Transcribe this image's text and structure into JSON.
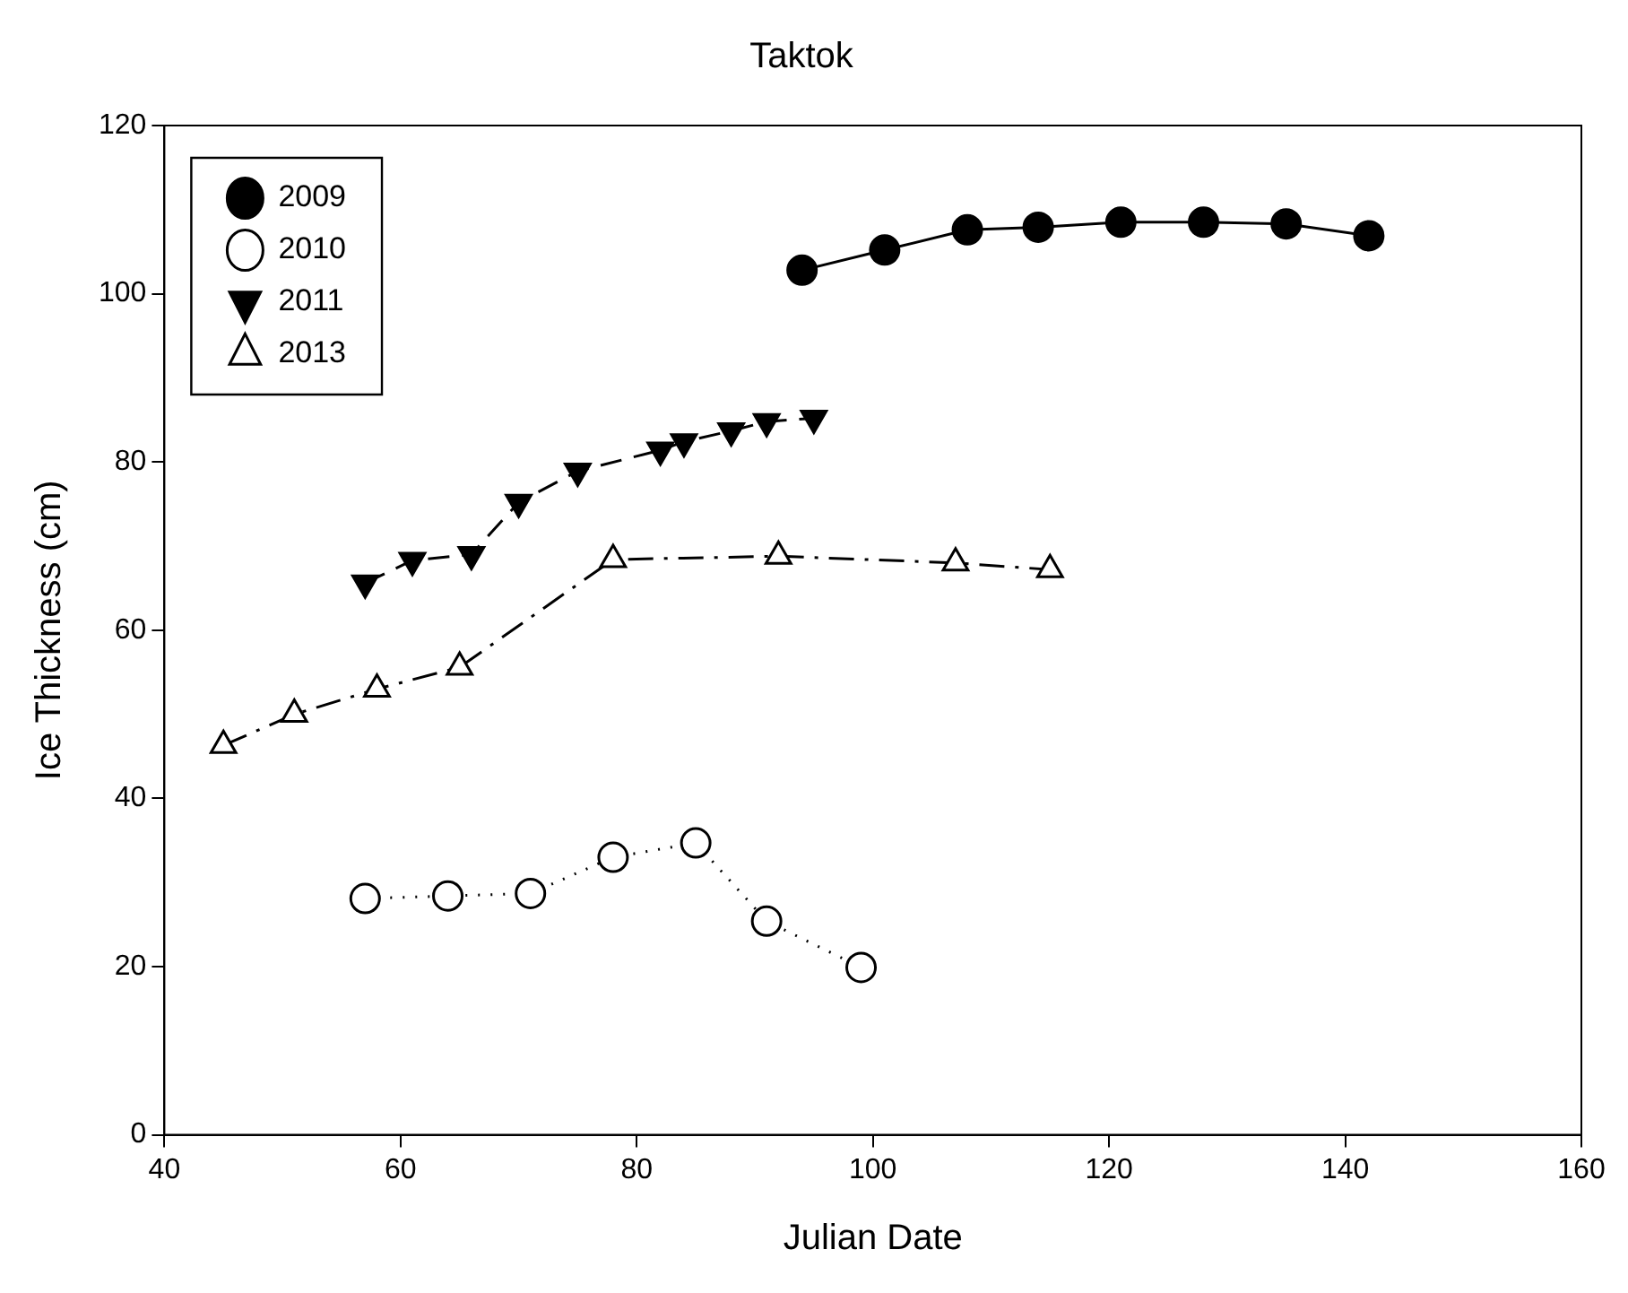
{
  "chart_data": {
    "type": "line",
    "title": "Taktok",
    "xlabel": "Julian Date",
    "ylabel": "Ice Thickness (cm)",
    "xlim": [
      40,
      160
    ],
    "xticks": [
      40,
      60,
      80,
      100,
      120,
      140,
      160
    ],
    "ylim": [
      0,
      120
    ],
    "yticks": [
      0,
      20,
      40,
      60,
      80,
      100,
      120
    ],
    "grid": false,
    "legend": "top left",
    "series": [
      {
        "name": "2009",
        "color": "#000000",
        "marker": "circle",
        "line_style": "solid",
        "x": [
          94,
          101,
          108,
          114,
          121,
          128,
          135,
          142
        ],
        "values": [
          102.8,
          105.2,
          107.6,
          107.9,
          108.5,
          108.5,
          108.3,
          106.9
        ],
        "colors": [
          "#000000",
          "#000000",
          "#000000",
          "#000000",
          "#000000",
          "#000000",
          "#000000",
          "#000000"
        ]
      },
      {
        "name": "2010",
        "color": "#000000",
        "marker": "circle",
        "line_style": "dotted",
        "x": [
          57,
          64,
          71,
          78,
          85,
          91,
          99
        ],
        "values": [
          28.1,
          28.4,
          28.7,
          33.0,
          34.7,
          25.4,
          19.9
        ],
        "colors": [
          "#ffffff",
          "#ffffff",
          "#ffffff",
          "#ffffff",
          "#ffffff",
          "#ffffff",
          "#ffffff"
        ]
      },
      {
        "name": "2011",
        "color": "#000000",
        "marker": "triangle-down",
        "line_style": "dashed",
        "x": [
          57,
          61,
          66,
          70,
          75,
          82,
          84,
          88,
          91,
          95
        ],
        "values": [
          65.6,
          68.3,
          69.0,
          75.2,
          78.9,
          81.4,
          82.4,
          83.7,
          84.8,
          85.2
        ],
        "colors": [
          "#000000",
          "#000000",
          "#000000",
          "#000000",
          "#000000",
          "#000000",
          "#000000",
          "#000000",
          "#000000",
          "#000000"
        ]
      },
      {
        "name": "2013",
        "color": "#000000",
        "marker": "triangle",
        "line_style": "dashdot",
        "x": [
          45,
          51,
          58,
          65,
          78,
          92,
          107,
          115
        ],
        "values": [
          46.3,
          50.0,
          53.0,
          55.6,
          68.4,
          68.8,
          68.0,
          67.2
        ],
        "colors": [
          "#ffffff",
          "#ffffff",
          "#ffffff",
          "#ffffff",
          "#ffffff",
          "#ffffff",
          "#ffffff",
          "#ffffff"
        ]
      }
    ]
  }
}
